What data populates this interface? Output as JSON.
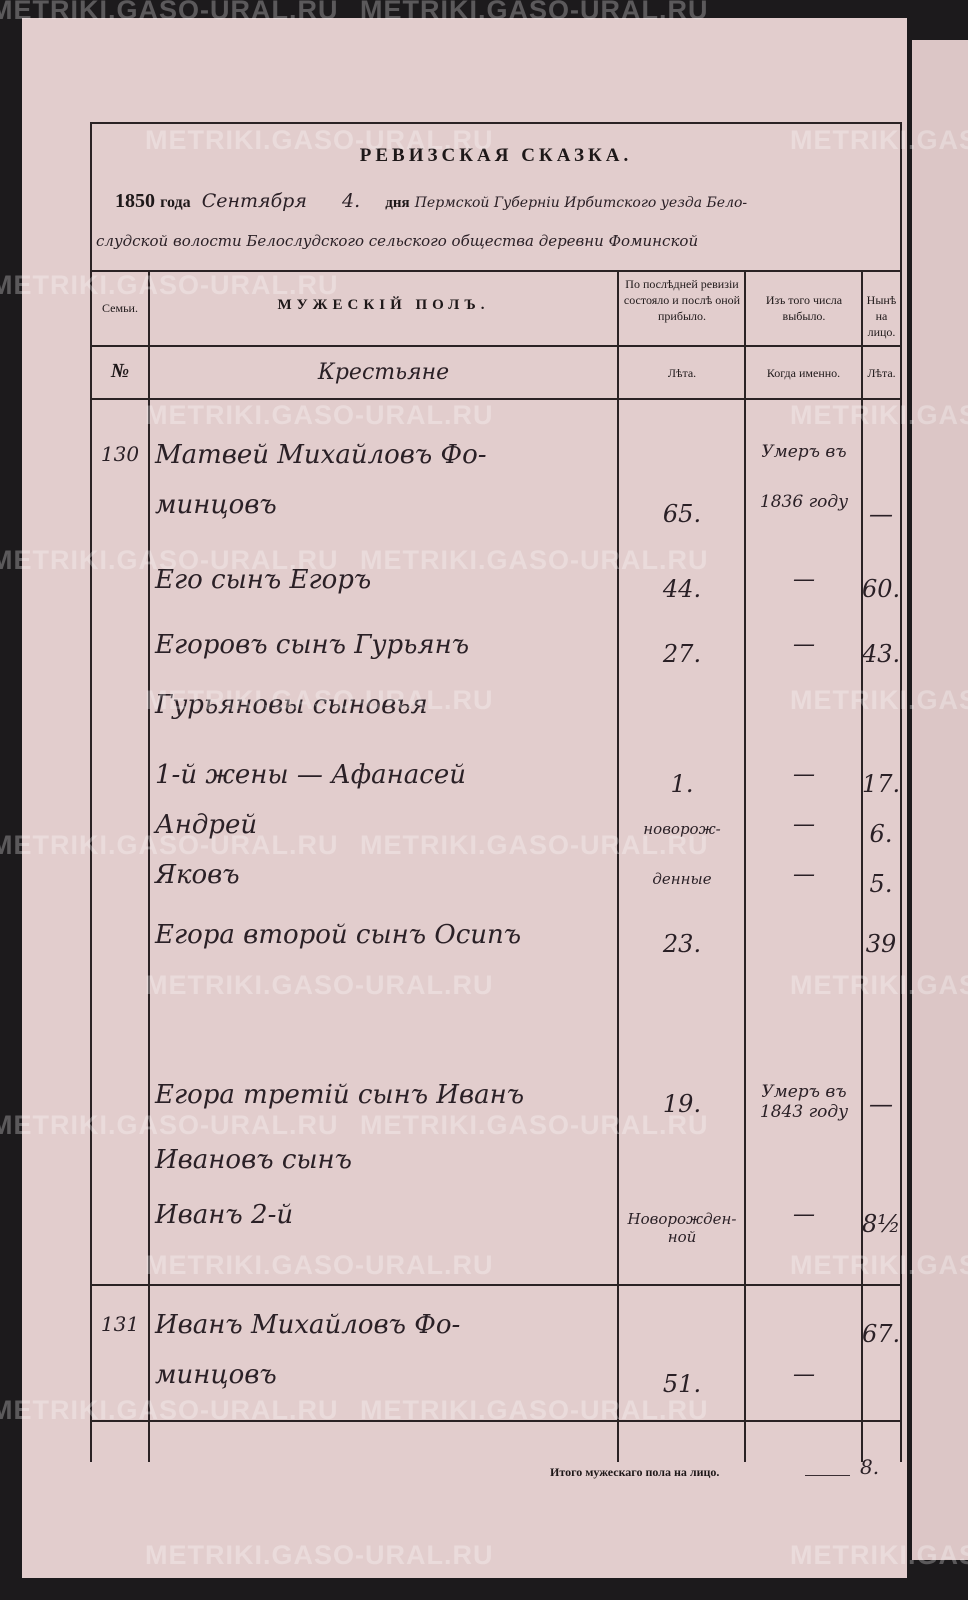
{
  "title": "РЕВИЗСКАЯ СКАЗКА.",
  "date_line": {
    "year": "1850",
    "year_word": "года",
    "month": "Сентября",
    "day": "4.",
    "day_word": "дня",
    "place1": "Пермской Губернiи Ирбитского уезда Бело-",
    "place2": "слудской волости Белослудского сельского общества деревни Фоминской"
  },
  "headers": {
    "family": "Семьи.",
    "male": "МУЖЕСКIЙ ПОЛЪ.",
    "last_revision": "По послѣдней ревизiи состояло и послѣ оной прибыло.",
    "dropped": "Изъ того числа выбыло.",
    "present": "Нынѣ на лицо."
  },
  "subheaders": {
    "num": "№",
    "estate": "Крестьяне",
    "years": "Лѣта.",
    "when": "Когда именно.",
    "years2": "Лѣта."
  },
  "rows": [
    {
      "family": "130",
      "name": "Матвей Михайловъ Фо-",
      "age": "",
      "when": "Умеръ въ",
      "now": ""
    },
    {
      "family": "",
      "name": "минцовъ",
      "age": "65.",
      "when": "1836 году",
      "now": "—"
    },
    {
      "family": "",
      "name": "Его сынъ Егоръ",
      "age": "44.",
      "when": "—",
      "now": "60."
    },
    {
      "family": "",
      "name": "Егоровъ сынъ Гурьянъ",
      "age": "27.",
      "when": "—",
      "now": "43."
    },
    {
      "family": "",
      "name": "Гурьяновы сыновья",
      "age": "",
      "when": "",
      "now": ""
    },
    {
      "family": "",
      "name": "1-й жены — Афанасей",
      "age": "1.",
      "when": "—",
      "now": "17."
    },
    {
      "family": "",
      "name": "Андрей",
      "age": "новорож-",
      "when": "—",
      "now": "6."
    },
    {
      "family": "",
      "name": "Яковъ",
      "age": "денные",
      "when": "—",
      "now": "5."
    },
    {
      "family": "",
      "name": "Егора второй сынъ Осипъ",
      "age": "23.",
      "when": "",
      "now": "39"
    },
    {
      "family": "",
      "name": "Егора третiй сынъ Иванъ",
      "age": "19.",
      "when": "Умеръ въ 1843 году",
      "now": "—"
    },
    {
      "family": "",
      "name": "Ивановъ сынъ",
      "age": "",
      "when": "",
      "now": ""
    },
    {
      "family": "",
      "name": "Иванъ 2-й",
      "age": "Новорожден-ной",
      "when": "—",
      "now": "8½"
    },
    {
      "family": "131",
      "name": "Иванъ Михайловъ Фо-",
      "age": "",
      "when": "",
      "now": "67."
    },
    {
      "family": "",
      "name": "минцовъ",
      "age": "51.",
      "when": "—",
      "now": ""
    }
  ],
  "footer": {
    "label": "Итого мужескаго пола на лицо.",
    "total": "8."
  },
  "watermark": "METRIKI.GASO-URAL.RU"
}
